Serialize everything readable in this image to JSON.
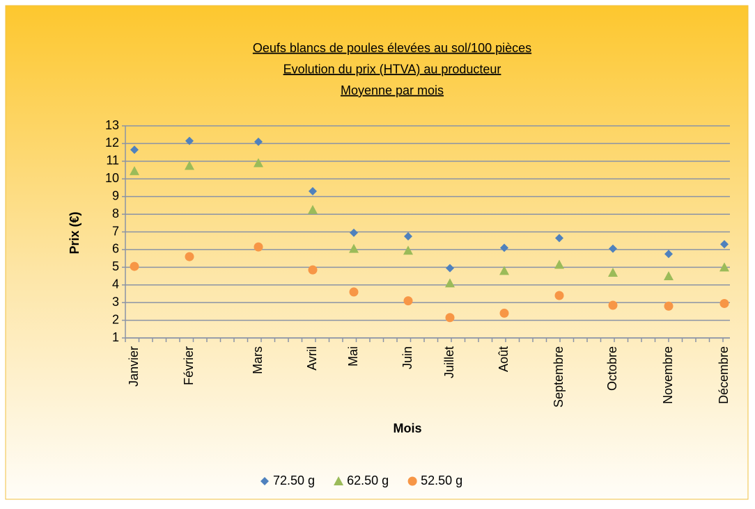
{
  "chart_data": {
    "type": "scatter",
    "title": [
      "Oeufs blancs de poules élevées au sol/100 pièces",
      "Evolution du prix (HTVA) au producteur",
      "Moyenne par mois"
    ],
    "x_label": "Mois",
    "y_label": "Prix (€)",
    "categories": [
      "Janvier",
      "Février",
      "Mars",
      "Avril",
      "Mai",
      "Juin",
      "Juillet",
      "Août",
      "Septembre",
      "Octobre",
      "Novembre",
      "Décembre"
    ],
    "series": [
      {
        "name": "72.50 g",
        "color": "#4f81bd",
        "marker": "diamond",
        "values": [
          11.65,
          12.15,
          12.1,
          9.3,
          6.95,
          6.75,
          4.95,
          6.1,
          6.65,
          6.05,
          5.75,
          6.3
        ]
      },
      {
        "name": "62.50 g",
        "color": "#9bbb59",
        "marker": "triangle",
        "values": [
          10.45,
          10.75,
          10.9,
          8.25,
          6.05,
          5.95,
          4.1,
          4.8,
          5.15,
          4.7,
          4.5,
          5.0
        ]
      },
      {
        "name": "52.50 g",
        "color": "#f79646",
        "marker": "circle",
        "values": [
          5.05,
          5.6,
          6.15,
          4.85,
          3.6,
          3.1,
          2.15,
          2.4,
          3.4,
          2.85,
          2.8,
          2.95
        ]
      }
    ],
    "ylim": [
      1,
      13
    ],
    "yticks": [
      1,
      2,
      3,
      4,
      5,
      6,
      7,
      8,
      9,
      10,
      11,
      12,
      13
    ],
    "grid": true,
    "legend": "bottom"
  }
}
